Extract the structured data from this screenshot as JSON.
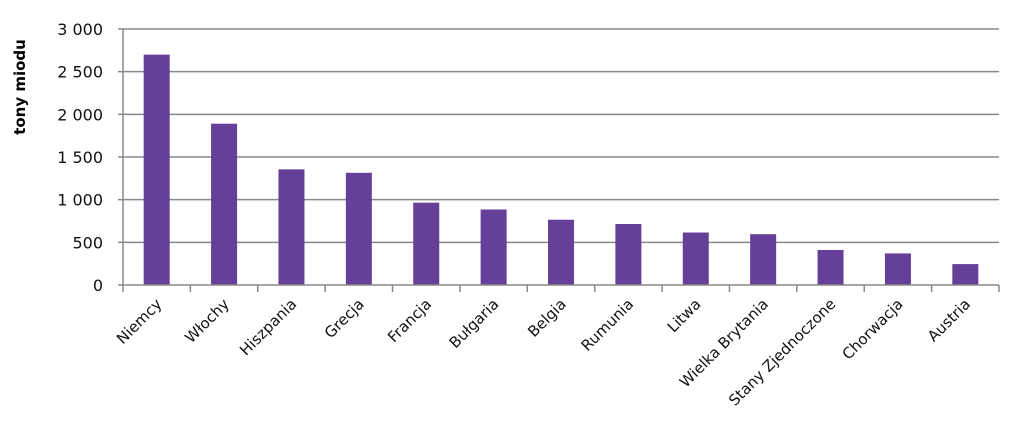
{
  "chart_data": {
    "type": "bar",
    "title": "",
    "xlabel": "",
    "ylabel": "tony miodu",
    "ylim": [
      0,
      3000
    ],
    "yticks": [
      "0",
      "500",
      "1 000",
      "1 500",
      "2 000",
      "2 500",
      "3 000"
    ],
    "grid": true,
    "bar_color": "#663f98",
    "categories": [
      "Niemcy",
      "Włochy",
      "Hiszpania",
      "Grecja",
      "Francja",
      "Bułgaria",
      "Belgia",
      "Rumunia",
      "Litwa",
      "Wielka Brytania",
      "Stany Zjednoczone",
      "Chorwacja",
      "Austria"
    ],
    "values": [
      2700,
      1890,
      1355,
      1315,
      965,
      885,
      765,
      715,
      615,
      595,
      410,
      370,
      245
    ]
  }
}
